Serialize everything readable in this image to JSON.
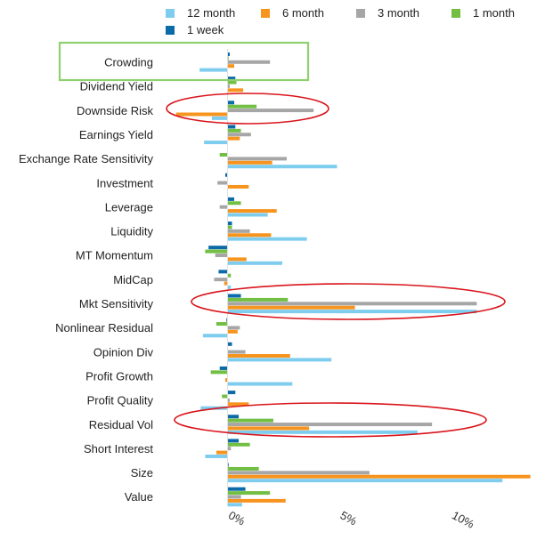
{
  "chart_data": {
    "type": "bar",
    "orientation": "horizontal",
    "categories": [
      "Crowding",
      "Dividend Yield",
      "Downside Risk",
      "Earnings Yield",
      "Exchange Rate Sensitivity",
      "Investment",
      "Leverage",
      "Liquidity",
      "MT Momentum",
      "MidCap",
      "Mkt Sensitivity",
      "Nonlinear Residual",
      "Opinion Div",
      "Profit Growth",
      "Profit Quality",
      "Residual Vol",
      "Short Interest",
      "Size",
      "Value"
    ],
    "series": [
      {
        "name": "1 week",
        "color": "#0b6aa8",
        "values": [
          0.1,
          0.35,
          0.3,
          0.35,
          0.0,
          -0.1,
          0.3,
          0.2,
          -0.85,
          -0.4,
          0.6,
          -0.05,
          0.2,
          -0.35,
          0.35,
          0.5,
          0.5,
          0.05,
          0.8
        ]
      },
      {
        "name": "1 month",
        "color": "#72bf44",
        "values": [
          0.05,
          0.4,
          1.3,
          0.6,
          -0.35,
          0.0,
          0.6,
          0.2,
          -1.0,
          0.15,
          2.7,
          -0.5,
          0.0,
          -0.75,
          -0.25,
          2.05,
          1.0,
          1.4,
          1.9
        ]
      },
      {
        "name": "3 month",
        "color": "#a6a6a6",
        "values": [
          1.9,
          0.1,
          3.85,
          1.05,
          2.65,
          -0.45,
          -0.35,
          1.0,
          -0.55,
          -0.6,
          11.15,
          0.55,
          0.8,
          0.0,
          0.1,
          9.15,
          0.15,
          6.35,
          0.6
        ]
      },
      {
        "name": "6 month",
        "color": "#f7941d",
        "values": [
          0.3,
          0.7,
          -2.3,
          0.55,
          2.0,
          0.95,
          2.2,
          1.95,
          0.85,
          -0.15,
          5.7,
          0.45,
          2.8,
          -0.1,
          0.95,
          3.65,
          -0.5,
          13.55,
          2.6
        ]
      },
      {
        "name": "12 month",
        "color": "#7fcdee",
        "values": [
          -1.25,
          0.0,
          -0.7,
          -1.05,
          4.9,
          0.0,
          1.8,
          3.55,
          2.45,
          0.15,
          11.15,
          -1.1,
          4.65,
          2.9,
          -1.2,
          8.5,
          -1.0,
          12.3,
          0.65
        ]
      }
    ],
    "x_ticks": [
      "0%",
      "5%",
      "10%"
    ],
    "xlim": [
      -2.5,
      13.8
    ],
    "title": "",
    "xlabel": "",
    "ylabel": "",
    "grid": false,
    "legend_position": "top",
    "annotations": {
      "highlight_box": {
        "category": "Crowding",
        "color": "#8fd16f"
      },
      "circled": [
        {
          "category": "Downside Risk",
          "color": "#d9141b"
        },
        {
          "category": "Mkt Sensitivity",
          "color": "#d9141b"
        },
        {
          "category": "Residual Vol",
          "color": "#d9141b"
        }
      ]
    }
  }
}
